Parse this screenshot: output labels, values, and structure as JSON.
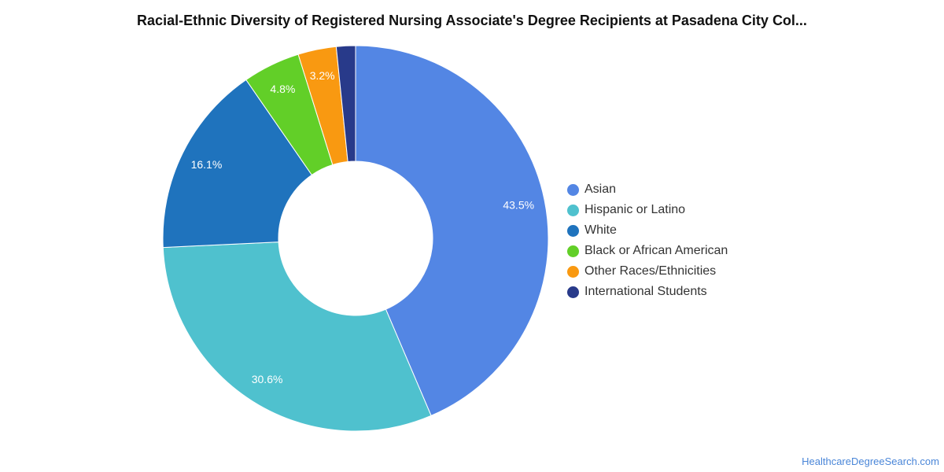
{
  "source_label": "HealthcareDegreeSearch.com",
  "chart_data": {
    "type": "pie",
    "donut": true,
    "title": "Racial-Ethnic Diversity of Registered Nursing Associate's Degree Recipients at Pasadena City Col...",
    "legend_position": "right",
    "series": [
      {
        "name": "Asian",
        "value": 43.5,
        "label": "43.5%",
        "color": "#5386e4"
      },
      {
        "name": "Hispanic or Latino",
        "value": 30.6,
        "label": "30.6%",
        "color": "#4fc1ce"
      },
      {
        "name": "White",
        "value": 16.1,
        "label": "16.1%",
        "color": "#1f73bd"
      },
      {
        "name": "Black or African American",
        "value": 4.8,
        "label": "4.8%",
        "color": "#62cf28"
      },
      {
        "name": "Other Races/Ethnicities",
        "value": 3.2,
        "label": "3.2%",
        "color": "#f99911"
      },
      {
        "name": "International Students",
        "value": 1.6,
        "label": "",
        "color": "#283a8a"
      }
    ]
  }
}
